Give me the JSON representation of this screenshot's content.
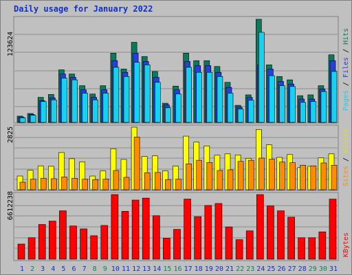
{
  "title": "Daily usage for January 2022",
  "colors": {
    "background": "#c0c0c0",
    "hits": "#0b7a5a",
    "files": "#2540d8",
    "pages": "#14d2f0",
    "visits": "#ffff00",
    "sites": "#ff8c00",
    "kbytes": "#ff0000",
    "day_normal": "#1030c8",
    "day_weekend": "#108060"
  },
  "chart_data": [
    {
      "type": "bar",
      "name": "hits-files-pages",
      "categories": [
        "1",
        "2",
        "3",
        "4",
        "5",
        "6",
        "7",
        "8",
        "9",
        "10",
        "11",
        "12",
        "13",
        "14",
        "15",
        "16",
        "17",
        "18",
        "19",
        "20",
        "21",
        "22",
        "23",
        "24",
        "25",
        "26",
        "27",
        "28",
        "29",
        "30",
        "31"
      ],
      "weekend": [
        "2",
        "8",
        "9",
        "15",
        "16",
        "22",
        "23",
        "29",
        "30"
      ],
      "ymax_label": "123624",
      "ylim": [
        0,
        123624
      ],
      "series_labels": {
        "pages": "Pages",
        "files": "Files",
        "hits": "Hits",
        "sep": " / "
      },
      "series": [
        {
          "name": "Hits",
          "values": [
            7500,
            10700,
            30000,
            33500,
            63000,
            58000,
            44000,
            34000,
            44000,
            83000,
            64000,
            96000,
            79000,
            61000,
            23000,
            43500,
            83000,
            74000,
            74000,
            67000,
            48000,
            20500,
            33000,
            123624,
            69000,
            55000,
            51000,
            32000,
            33000,
            44000,
            81000
          ]
        },
        {
          "name": "Files",
          "values": [
            6500,
            9500,
            26000,
            29500,
            58000,
            54000,
            39000,
            30000,
            39000,
            74000,
            60000,
            83000,
            73000,
            54000,
            21000,
            39000,
            73000,
            68000,
            68000,
            60000,
            42000,
            18500,
            30000,
            69000,
            64000,
            49000,
            46000,
            28000,
            28000,
            40000,
            74000
          ]
        },
        {
          "name": "Pages",
          "values": [
            5500,
            8500,
            25000,
            27000,
            53000,
            51000,
            35000,
            27000,
            35000,
            66000,
            55000,
            72000,
            69000,
            48000,
            17500,
            34000,
            66000,
            60000,
            60000,
            55000,
            35000,
            16000,
            26500,
            108000,
            56000,
            44000,
            43000,
            24000,
            25000,
            37000,
            61000
          ]
        }
      ]
    },
    {
      "type": "bar",
      "name": "visits-sites",
      "ymax_label": "2825",
      "ylim": [
        0,
        2825
      ],
      "series_labels": {
        "sites": "Sites",
        "visits": "Visits",
        "sep": " / "
      },
      "series": [
        {
          "name": "Visits",
          "values": [
            620,
            880,
            1080,
            1060,
            1680,
            1400,
            1260,
            620,
            850,
            1850,
            1370,
            2825,
            1500,
            1530,
            850,
            1070,
            2420,
            2150,
            1980,
            1560,
            1620,
            1570,
            1420,
            2720,
            2030,
            1460,
            1590,
            1000,
            1060,
            1440,
            1620
          ]
        },
        {
          "name": "Sites",
          "values": [
            340,
            480,
            520,
            500,
            580,
            520,
            480,
            460,
            480,
            870,
            560,
            2380,
            770,
            780,
            460,
            480,
            1170,
            1330,
            1230,
            870,
            900,
            1280,
            1330,
            1430,
            1380,
            1250,
            1220,
            1110,
            1080,
            1210,
            1110
          ]
        }
      ]
    },
    {
      "type": "bar",
      "name": "kbytes",
      "ymax_label": "6612238",
      "ylim": [
        0,
        6612238
      ],
      "series_labels": {
        "kbytes": "KBytes"
      },
      "series": [
        {
          "name": "KBytes",
          "values": [
            1550000,
            2200000,
            3550000,
            3900000,
            4950000,
            3400000,
            3100000,
            2400000,
            3450000,
            6612238,
            4900000,
            6050000,
            6250000,
            4450000,
            2150000,
            3050000,
            6150000,
            4350000,
            5500000,
            5700000,
            3300000,
            2000000,
            2900000,
            6612238,
            5450000,
            4950000,
            4300000,
            2200000,
            2200000,
            2800000,
            6150000
          ]
        }
      ]
    }
  ]
}
